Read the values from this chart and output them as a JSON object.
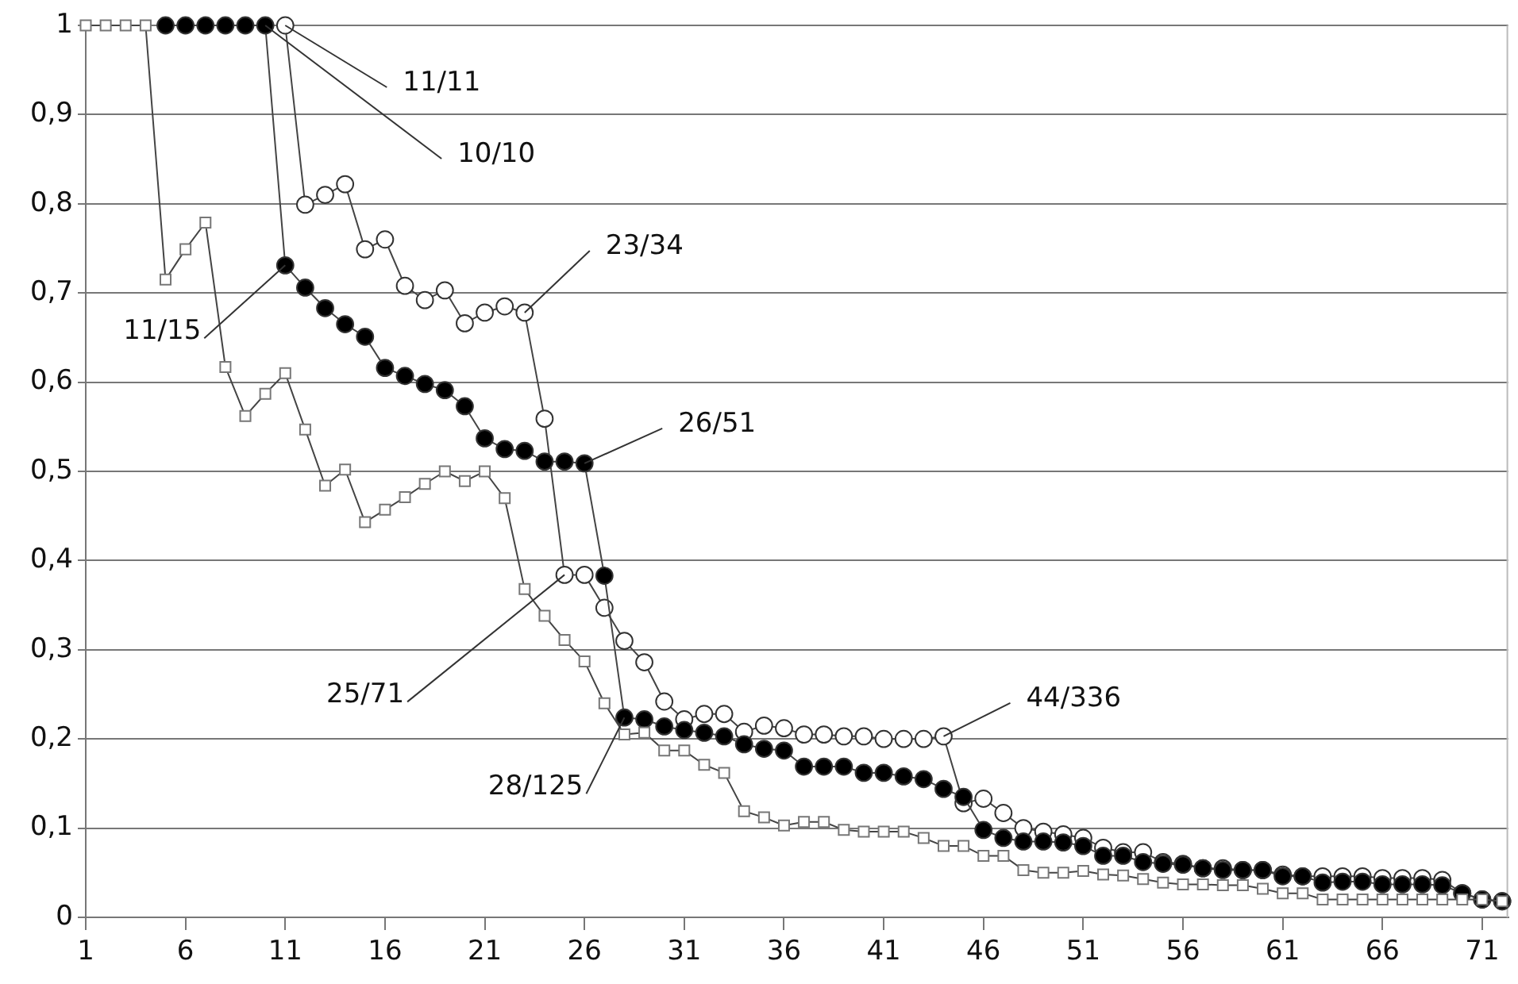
{
  "chart_data": {
    "type": "line",
    "x": [
      1,
      2,
      3,
      4,
      5,
      6,
      7,
      8,
      9,
      10,
      11,
      12,
      13,
      14,
      15,
      16,
      17,
      18,
      19,
      20,
      21,
      22,
      23,
      24,
      25,
      26,
      27,
      28,
      29,
      30,
      31,
      32,
      33,
      34,
      35,
      36,
      37,
      38,
      39,
      40,
      41,
      42,
      43,
      44,
      45,
      46,
      47,
      48,
      49,
      50,
      51,
      52,
      53,
      54,
      55,
      56,
      57,
      58,
      59,
      60,
      61,
      62,
      63,
      64,
      65,
      66,
      67,
      68,
      69,
      70,
      71,
      72
    ],
    "series": [
      {
        "color": "#ffffff",
        "marker": "square",
        "values": [
          1,
          1,
          1,
          1,
          0.715,
          0.749,
          0.779,
          0.617,
          0.562,
          0.587,
          0.61,
          0.547,
          0.484,
          0.502,
          0.443,
          0.457,
          0.471,
          0.486,
          0.5,
          0.489,
          0.5,
          0.47,
          0.368,
          0.338,
          0.311,
          0.287,
          0.24,
          0.205,
          0.207,
          0.187,
          0.187,
          0.171,
          0.162,
          0.119,
          0.112,
          0.103,
          0.107,
          0.107,
          0.098,
          0.096,
          0.096,
          0.096,
          0.089,
          0.08,
          0.08,
          0.069,
          0.069,
          0.053,
          0.05,
          0.05,
          0.052,
          0.048,
          0.047,
          0.043,
          0.039,
          0.037,
          0.037,
          0.036,
          0.036,
          0.032,
          0.027,
          0.027,
          0.02,
          0.02,
          0.02,
          0.02,
          0.02,
          0.02,
          0.02,
          0.02,
          0.02,
          0.018
        ]
      },
      {
        "color": "#000000",
        "marker": "circle",
        "values": [
          null,
          null,
          null,
          null,
          1,
          1,
          1,
          1,
          1,
          1,
          0.731,
          0.706,
          0.683,
          0.665,
          0.651,
          0.616,
          0.607,
          0.598,
          0.591,
          0.573,
          0.537,
          0.525,
          0.523,
          0.511,
          0.511,
          0.509,
          0.383,
          0.224,
          0.222,
          0.214,
          0.21,
          0.207,
          0.203,
          0.194,
          0.189,
          0.187,
          0.169,
          0.169,
          0.169,
          0.162,
          0.162,
          0.158,
          0.155,
          0.144,
          0.135,
          0.098,
          0.089,
          0.085,
          0.085,
          0.084,
          0.08,
          0.069,
          0.069,
          0.062,
          0.06,
          0.059,
          0.055,
          0.053,
          0.053,
          0.053,
          0.046,
          0.046,
          0.039,
          0.04,
          0.04,
          0.037,
          0.037,
          0.037,
          0.036,
          0.027,
          0.02,
          0.018
        ]
      },
      {
        "color": "#ffffff",
        "marker": "circle",
        "values": [
          null,
          null,
          null,
          null,
          null,
          null,
          null,
          null,
          null,
          null,
          1,
          0.799,
          0.81,
          0.822,
          0.749,
          0.76,
          0.708,
          0.692,
          0.703,
          0.666,
          0.678,
          0.685,
          0.678,
          0.559,
          0.384,
          0.384,
          0.347,
          0.31,
          0.286,
          0.242,
          0.222,
          0.228,
          0.228,
          0.208,
          0.215,
          0.212,
          0.205,
          0.205,
          0.203,
          0.203,
          0.2,
          0.2,
          0.2,
          0.203,
          0.128,
          0.133,
          0.117,
          0.1,
          0.096,
          0.093,
          0.089,
          0.078,
          0.073,
          0.073,
          0.062,
          0.06,
          0.055,
          0.055,
          0.053,
          0.053,
          0.048,
          0.046,
          0.046,
          0.046,
          0.046,
          0.044,
          0.044,
          0.044,
          0.042,
          0.027,
          0.02,
          0.018
        ]
      }
    ],
    "xlim": [
      1,
      72.3
    ],
    "xticks": [
      1,
      6,
      11,
      16,
      21,
      26,
      31,
      36,
      41,
      46,
      51,
      56,
      61,
      66,
      71
    ],
    "ylim": [
      0,
      1
    ],
    "yticks": [
      0,
      {
        "value": 0.1,
        "label": "0,1"
      },
      {
        "value": 0.2,
        "label": "0,2"
      },
      {
        "value": 0.3,
        "label": "0,3"
      },
      {
        "value": 0.4,
        "label": "0,4"
      },
      {
        "value": 0.5,
        "label": "0,5"
      },
      {
        "value": 0.6,
        "label": "0,6"
      },
      {
        "value": 0.7,
        "label": "0,7"
      },
      {
        "value": 0.8,
        "label": "0,8"
      },
      {
        "value": 0.9,
        "label": "0,9"
      },
      1
    ],
    "grid": "y",
    "legend": false,
    "annotations": [
      {
        "text": "11/11",
        "x": 11,
        "y": 1
      },
      {
        "text": "10/10",
        "x": 10,
        "y": 1
      },
      {
        "text": "23/34",
        "x": 23,
        "y": 0.678
      },
      {
        "text": "11/15",
        "x": 11,
        "y": 0.731
      },
      {
        "text": "26/51",
        "x": 26,
        "y": 0.509
      },
      {
        "text": "25/71",
        "x": 25,
        "y": 0.384
      },
      {
        "text": "28/125",
        "x": 28,
        "y": 0.224
      },
      {
        "text": "44/336",
        "x": 44,
        "y": 0.203
      }
    ]
  }
}
